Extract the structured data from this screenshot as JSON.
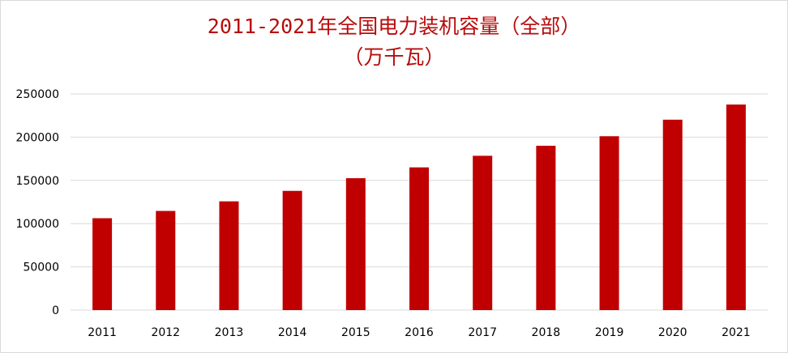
{
  "chart_data": {
    "type": "bar",
    "title": "2011-2021年全国电力装机容量（全部）",
    "subtitle": "（万千瓦）",
    "categories": [
      "2011",
      "2012",
      "2013",
      "2014",
      "2015",
      "2016",
      "2017",
      "2018",
      "2019",
      "2020",
      "2021"
    ],
    "series": [
      {
        "values": [
          106253,
          114676,
          125768,
          137887,
          152527,
          165051,
          178451,
          190012,
          201066,
          220204,
          237692
        ]
      }
    ],
    "y_ticks": [
      "0",
      "50000",
      "100000",
      "150000",
      "200000",
      "250000"
    ],
    "ylim": [
      0,
      250000
    ],
    "grid": true,
    "legend": "none",
    "bar_color": "#c00000",
    "title_color": "#b80b0b",
    "grid_color": "#d9d9d9"
  }
}
